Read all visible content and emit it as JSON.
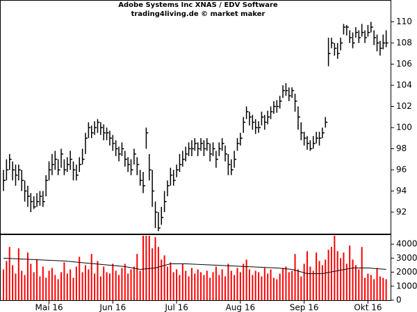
{
  "chart_data": {
    "type": "ohlc",
    "title": "Adobe Systems Inc XNAS / EDV Software",
    "subtitle": "trading4living.de © market maker",
    "color": "#000000",
    "volume_color": "#ff0000",
    "avg_color": "#000000",
    "xlim": [
      0,
      127
    ],
    "xticks": [
      {
        "value": 15,
        "label": "Mai 16"
      },
      {
        "value": 36,
        "label": "Jun 16"
      },
      {
        "value": 57,
        "label": "Jul 16"
      },
      {
        "value": 78,
        "label": "Aug 16"
      },
      {
        "value": 99,
        "label": "Sep 16"
      },
      {
        "value": 120,
        "label": "Okt 16"
      }
    ],
    "ylim": [
      89.9,
      112
    ],
    "yticks": [
      92,
      94,
      96,
      98,
      100,
      102,
      104,
      106,
      108,
      110
    ],
    "y2lim": [
      0,
      4700
    ],
    "y2ticks": [
      0,
      1000,
      2000,
      3000,
      4000
    ],
    "close": [
      95,
      96,
      97,
      96,
      95.5,
      96,
      95,
      94,
      93.5,
      93,
      92.5,
      93,
      93.5,
      93,
      95,
      96,
      96.5,
      97,
      96,
      97.5,
      96,
      96.5,
      97,
      96,
      95.5,
      96.5,
      97,
      99,
      100,
      99.5,
      100,
      100.5,
      100,
      99.5,
      99.5,
      99,
      98.5,
      98,
      97.5,
      98,
      97,
      96.5,
      96,
      97.5,
      96.5,
      95,
      94.5,
      99.5,
      96,
      94,
      92,
      90.5,
      91.5,
      93,
      94.5,
      95.5,
      95,
      96,
      96.5,
      97,
      97.5,
      98,
      98,
      98.5,
      98,
      98.5,
      98,
      98.5,
      97.5,
      98,
      97,
      98,
      98.5,
      97.5,
      96.5,
      96,
      97,
      98.5,
      99,
      100.5,
      101.5,
      101,
      100.5,
      100,
      100,
      101,
      100.5,
      101,
      101.5,
      102,
      102,
      102.5,
      103.5,
      103.5,
      103,
      103.5,
      102.5,
      101,
      99.5,
      99,
      98.5,
      98,
      98.5,
      99,
      99,
      99.5,
      100.5,
      107,
      108,
      107.5,
      107,
      108,
      109.5,
      109.5,
      108.5,
      108,
      109,
      108.5,
      109,
      108.5,
      109,
      109.5,
      108.5,
      108,
      107.5,
      108,
      108
    ],
    "high": [
      96,
      97,
      97.5,
      96.8,
      96.5,
      96.5,
      96,
      95,
      94.5,
      93.8,
      93.5,
      93.8,
      94,
      94,
      95.5,
      96.8,
      97.5,
      97.8,
      97,
      98,
      97,
      97.2,
      97.8,
      96.8,
      96.5,
      97.2,
      98,
      99.5,
      100.5,
      100.2,
      100.6,
      100.8,
      100.5,
      100.3,
      100,
      99.7,
      99.3,
      98.8,
      98.2,
      98.6,
      97.8,
      97.2,
      97,
      98,
      97.2,
      96,
      95.8,
      100,
      97.5,
      96,
      93,
      92,
      92.5,
      94,
      95,
      96.2,
      96,
      96.5,
      97.5,
      97.8,
      98.2,
      98.6,
      98.8,
      99,
      98.6,
      99,
      98.8,
      99,
      98.5,
      98.6,
      97.8,
      98.6,
      99,
      98.3,
      97.5,
      97,
      97.8,
      99,
      99.5,
      101,
      102,
      101.5,
      101.2,
      100.8,
      100.6,
      101.5,
      101.2,
      101.6,
      102,
      102.5,
      102.6,
      103,
      104,
      104.2,
      103.8,
      103.8,
      103.2,
      102,
      100.5,
      99.6,
      99.2,
      98.8,
      99.2,
      99.6,
      99.6,
      100,
      101,
      108.5,
      108.5,
      108,
      108,
      108.5,
      109.8,
      109.7,
      109.2,
      109,
      109.5,
      109.2,
      109.8,
      109.2,
      109.7,
      110,
      109.2,
      108.8,
      108.2,
      108.8,
      109.2
    ],
    "low": [
      94,
      95,
      96,
      95,
      94.5,
      95,
      94,
      93,
      92.5,
      92,
      92.3,
      92.5,
      92.6,
      92.5,
      93.5,
      95,
      95.5,
      96,
      95.5,
      96.2,
      95.5,
      95.8,
      96,
      95,
      95,
      95.8,
      96.5,
      97.5,
      99,
      99,
      99.3,
      99.5,
      99.3,
      98.8,
      98.8,
      98.3,
      97.8,
      97.3,
      96.8,
      97.3,
      96.3,
      95.8,
      95.5,
      96.5,
      95.5,
      94.5,
      93.8,
      98,
      95,
      92.5,
      90.5,
      90.2,
      90.8,
      92,
      93.5,
      94.5,
      94.5,
      95.3,
      95.8,
      96.3,
      96.8,
      97.3,
      97.3,
      97.8,
      97.3,
      97.8,
      97.3,
      97.8,
      96.8,
      97.3,
      96.2,
      97.3,
      97.8,
      96.8,
      95.5,
      95.5,
      96.2,
      97.8,
      98.3,
      99.5,
      100.8,
      100.2,
      99.8,
      99.4,
      99.5,
      100.2,
      99.8,
      100.3,
      100.8,
      101.3,
      101.4,
      101.8,
      102.8,
      103,
      102.5,
      102.8,
      101.5,
      99.8,
      98.8,
      98.3,
      97.9,
      97.8,
      98,
      98.5,
      98.3,
      99,
      100,
      105.8,
      107.5,
      106.8,
      106.5,
      107.3,
      108.8,
      108.7,
      108,
      107.5,
      108.5,
      108,
      108.6,
      108,
      108.6,
      109,
      107.8,
      107.2,
      106.8,
      107.4,
      107.6
    ],
    "volume": [
      2200,
      2800,
      3800,
      2500,
      1900,
      3700,
      2100,
      1800,
      3400,
      2600,
      2000,
      2900,
      1700,
      2400,
      1600,
      2100,
      2300,
      1800,
      1500,
      2000,
      2700,
      1900,
      2200,
      1600,
      2400,
      3100,
      2000,
      2500,
      2200,
      3300,
      1900,
      2800,
      1700,
      2400,
      2000,
      1900,
      2600,
      2100,
      1800,
      2300,
      2600,
      1900,
      2200,
      2400,
      3300,
      2100,
      4600,
      4600,
      4600,
      3700,
      4500,
      3800,
      2900,
      3200,
      2400,
      2700,
      2000,
      2200,
      1800,
      2600,
      2100,
      1700,
      2300,
      1900,
      2200,
      2000,
      1800,
      2100,
      1600,
      2000,
      2400,
      1800,
      2200,
      1700,
      2600,
      2100,
      1800,
      2300,
      2000,
      2600,
      2900,
      2200,
      1800,
      2100,
      2000,
      1700,
      2300,
      1900,
      2200,
      1600,
      1500,
      1900,
      2300,
      2400,
      2000,
      2100,
      3300,
      2200,
      1700,
      2600,
      3500,
      2400,
      2100,
      3400,
      2800,
      2500,
      2900,
      3600,
      3800,
      4600,
      3500,
      3000,
      3400,
      2600,
      3900,
      2900,
      2500,
      2200,
      3800,
      1600,
      1900,
      1800,
      1500,
      2300,
      1700,
      1600,
      1500
    ],
    "avg_x": [
      0,
      10,
      20,
      30,
      40,
      45,
      50,
      55,
      60,
      70,
      80,
      90,
      95,
      100,
      105,
      110,
      115,
      120,
      126
    ],
    "avg": [
      3000,
      2900,
      2800,
      2600,
      2400,
      2200,
      2300,
      2600,
      2600,
      2500,
      2400,
      2300,
      2200,
      1900,
      1900,
      2100,
      2300,
      2300,
      2200
    ]
  }
}
